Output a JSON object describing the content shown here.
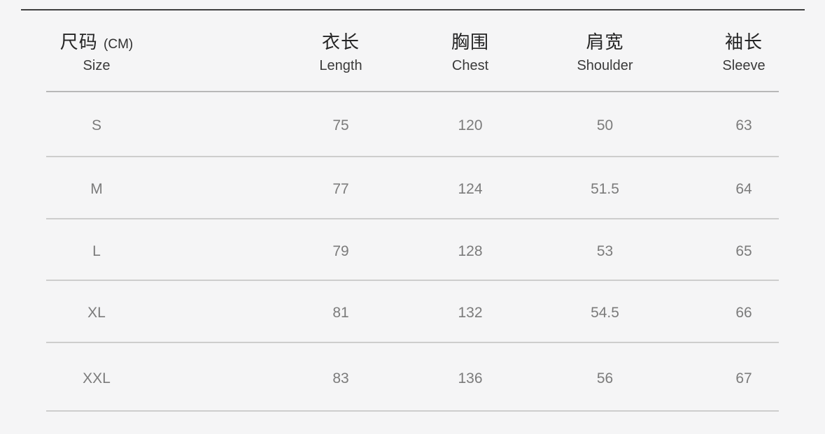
{
  "table": {
    "title_semantic": "garment-size-chart",
    "columns": [
      {
        "cn": "尺码",
        "unit": "(CM)",
        "en": "Size"
      },
      {
        "cn": "衣长",
        "en": "Length"
      },
      {
        "cn": "胸围",
        "en": "Chest"
      },
      {
        "cn": "肩宽",
        "en": "Shoulder"
      },
      {
        "cn": "袖长",
        "en": "Sleeve"
      }
    ],
    "rows": [
      {
        "size": "S",
        "values": [
          "75",
          "120",
          "50",
          "63"
        ]
      },
      {
        "size": "M",
        "values": [
          "77",
          "124",
          "51.5",
          "64"
        ]
      },
      {
        "size": "L",
        "values": [
          "79",
          "128",
          "53",
          "65"
        ]
      },
      {
        "size": "XL",
        "values": [
          "81",
          "132",
          "54.5",
          "66"
        ]
      },
      {
        "size": "XXL",
        "values": [
          "83",
          "136",
          "56",
          "67"
        ]
      }
    ]
  },
  "colors": {
    "background": "#f5f5f6",
    "top_rule": "#3f3f3f",
    "header_separator": "#b8b8b8",
    "row_separator": "#cdcdcd",
    "header_text": "#252525",
    "header_subtext": "#3a3a3a",
    "value_text": "#7b7b7b"
  },
  "chart_data": {
    "type": "table",
    "title": "尺码 (CM) Size Chart",
    "columns": [
      "尺码 (CM) Size",
      "衣长 Length",
      "胸围 Chest",
      "肩宽 Shoulder",
      "袖长 Sleeve"
    ],
    "rows": [
      [
        "S",
        75,
        120,
        50,
        63
      ],
      [
        "M",
        77,
        124,
        51.5,
        64
      ],
      [
        "L",
        79,
        128,
        53,
        65
      ],
      [
        "XL",
        81,
        132,
        54.5,
        66
      ],
      [
        "XXL",
        83,
        136,
        56,
        67
      ]
    ]
  }
}
